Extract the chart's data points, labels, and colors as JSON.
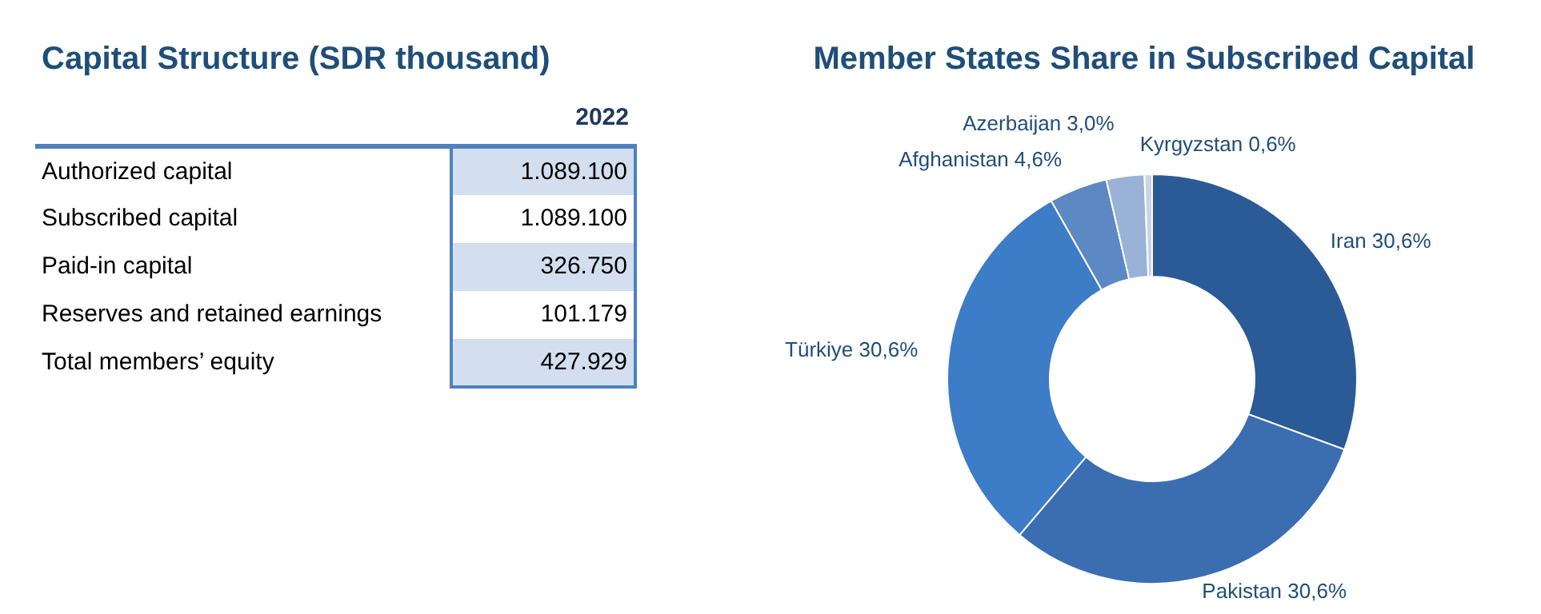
{
  "chart_data": [
    {
      "type": "other",
      "title": "Capital Structure (SDR thousand)",
      "categories": [
        "Authorized capital",
        "Subscribed capital",
        "Paid-in capital",
        "Reserves and retained earnings",
        "Total members’ equity"
      ],
      "annotations": [
        "2022",
        "1.089.100",
        "1.089.100",
        "326.750",
        "101.179",
        "427.929"
      ]
    },
    {
      "type": "donut",
      "title": "Member States Share in Subscribed Capital",
      "categories": [
        "Iran",
        "Pakistan",
        "Türkiye",
        "Afghanistan",
        "Azerbaijan",
        "Kyrgyzstan"
      ],
      "values": [
        30.6,
        30.6,
        30.6,
        4.6,
        3.0,
        0.6
      ],
      "value_labels": [
        "30,6%",
        "30,6%",
        "30,6%",
        "4,6%",
        "3,0%",
        "0,6%"
      ],
      "colors": [
        "#2b5b96",
        "#3a6eb0",
        "#3d7cc6",
        "#5c88c4",
        "#9ab2d8",
        "#c8d4e8"
      ]
    }
  ]
}
